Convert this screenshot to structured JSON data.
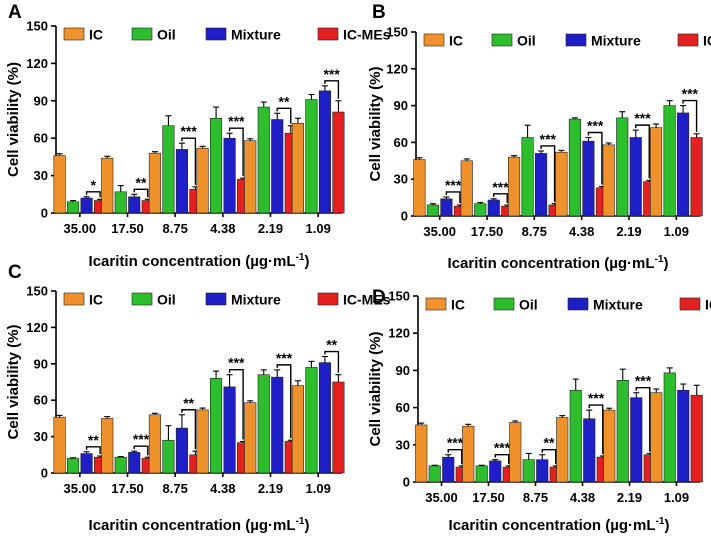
{
  "figure": {
    "colors": {
      "IC": "#F0922C",
      "Oil": "#2DBE2D",
      "Mixture": "#1F1FC8",
      "IC-MEs": "#E62020"
    }
  },
  "chart_data": [
    {
      "panel": "A",
      "type": "bar",
      "xlabel": "Icaritin concentration (µg·mL",
      "xlabel_sup": "-1",
      "xlabel_end": ")",
      "ylabel": "Cell viability (%)",
      "ylim": [
        0,
        150
      ],
      "yticks": [
        "0",
        "30",
        "60",
        "90",
        "120",
        "150"
      ],
      "categories": [
        "35.00",
        "17.50",
        "8.75",
        "4.38",
        "2.19",
        "1.09"
      ],
      "legend": [
        "IC",
        "Oil",
        "Mixture",
        "IC-MEs"
      ],
      "series": [
        {
          "name": "IC",
          "values": [
            46,
            44,
            48,
            52,
            58,
            72
          ],
          "errors": [
            1.5,
            1.5,
            1.2,
            1.5,
            1.5,
            4
          ]
        },
        {
          "name": "Oil",
          "values": [
            9,
            17,
            70,
            76,
            85,
            91
          ],
          "errors": [
            1,
            5,
            8,
            9,
            4,
            4
          ]
        },
        {
          "name": "Mixture",
          "values": [
            12,
            13,
            51,
            60,
            75,
            98
          ],
          "errors": [
            1,
            2,
            5,
            4,
            5,
            4
          ]
        },
        {
          "name": "IC-MEs",
          "values": [
            10,
            10,
            19,
            27,
            64,
            81
          ],
          "errors": [
            1,
            1,
            2,
            1,
            6,
            9
          ]
        }
      ],
      "significance": [
        "*",
        "**",
        "***",
        "***",
        "**",
        "***"
      ]
    },
    {
      "panel": "B",
      "type": "bar",
      "xlabel": "Icaritin concentration (µg·mL",
      "xlabel_sup": "-1",
      "xlabel_end": ")",
      "ylabel": "Cell viability (%)",
      "ylim": [
        0,
        150
      ],
      "yticks": [
        "0",
        "30",
        "60",
        "90",
        "120",
        "150"
      ],
      "categories": [
        "35.00",
        "17.50",
        "8.75",
        "4.38",
        "2.19",
        "1.09"
      ],
      "legend": [
        "IC",
        "Oil",
        "Mixture",
        "IC-MEs"
      ],
      "series": [
        {
          "name": "IC",
          "values": [
            46,
            45,
            48,
            52,
            58,
            72
          ],
          "errors": [
            1.5,
            1.5,
            1.2,
            1.5,
            1.5,
            3
          ]
        },
        {
          "name": "Oil",
          "values": [
            9,
            10,
            64,
            79,
            80,
            90
          ],
          "errors": [
            1,
            1,
            10,
            1,
            5,
            4
          ]
        },
        {
          "name": "Mixture",
          "values": [
            14,
            13,
            51,
            61,
            64,
            84
          ],
          "errors": [
            1.5,
            1,
            2,
            3,
            6,
            6
          ]
        },
        {
          "name": "IC-MEs",
          "values": [
            8,
            8,
            9,
            23,
            28,
            64
          ],
          "errors": [
            1,
            1,
            1,
            1,
            1,
            3
          ]
        }
      ],
      "significance": [
        "***",
        "***",
        "***",
        "***",
        "***",
        "***"
      ]
    },
    {
      "panel": "C",
      "type": "bar",
      "xlabel": "Icaritin concentration (µg·mL",
      "xlabel_sup": "-1",
      "xlabel_end": ")",
      "ylabel": "Cell viability (%)",
      "ylim": [
        0,
        150
      ],
      "yticks": [
        "0",
        "30",
        "60",
        "90",
        "120",
        "150"
      ],
      "categories": [
        "35.00",
        "17.50",
        "8.75",
        "4.38",
        "2.19",
        "1.09"
      ],
      "legend": [
        "IC",
        "Oil",
        "Mixture",
        "IC-MEs"
      ],
      "series": [
        {
          "name": "IC",
          "values": [
            46,
            45,
            48,
            52,
            58,
            72
          ],
          "errors": [
            1.5,
            1.5,
            1.2,
            1.5,
            1.5,
            4
          ]
        },
        {
          "name": "Oil",
          "values": [
            12,
            13,
            27,
            78,
            81,
            87
          ],
          "errors": [
            0.5,
            0.5,
            12,
            6,
            4,
            5
          ]
        },
        {
          "name": "Mixture",
          "values": [
            16,
            17,
            37,
            71,
            79,
            91
          ],
          "errors": [
            1.5,
            1,
            11,
            10,
            6,
            5
          ]
        },
        {
          "name": "IC-MEs",
          "values": [
            13,
            12,
            15,
            25,
            26,
            75
          ],
          "errors": [
            1,
            1,
            3,
            1,
            1,
            6
          ]
        }
      ],
      "significance": [
        "**",
        "***",
        "**",
        "***",
        "***",
        "**"
      ]
    },
    {
      "panel": "D",
      "type": "bar",
      "xlabel": "Icaritin concentration (µg·mL",
      "xlabel_sup": "-1",
      "xlabel_end": ")",
      "ylabel": "Cell viability (%)",
      "ylim": [
        0,
        150
      ],
      "yticks": [
        "0",
        "30",
        "60",
        "90",
        "120",
        "150"
      ],
      "categories": [
        "35.00",
        "17.50",
        "8.75",
        "4.38",
        "2.19",
        "1.09"
      ],
      "legend": [
        "IC",
        "Oil",
        "Mixture",
        "IC-MEs"
      ],
      "series": [
        {
          "name": "IC",
          "values": [
            46,
            45,
            48,
            52,
            58,
            72
          ],
          "errors": [
            1.5,
            1.5,
            1.2,
            1.5,
            1.5,
            3
          ]
        },
        {
          "name": "Oil",
          "values": [
            13,
            13,
            18,
            74,
            82,
            88
          ],
          "errors": [
            0.5,
            0.5,
            5,
            9,
            9,
            4
          ]
        },
        {
          "name": "Mixture",
          "values": [
            20,
            17,
            18,
            51,
            68,
            74
          ],
          "errors": [
            2,
            1,
            4,
            7,
            4,
            5
          ]
        },
        {
          "name": "IC-MEs",
          "values": [
            12,
            12,
            12,
            20,
            22,
            70
          ],
          "errors": [
            1,
            1,
            1,
            1,
            1,
            8
          ]
        }
      ],
      "significance": [
        "***",
        "***",
        "**",
        "***",
        "***",
        ""
      ]
    }
  ]
}
